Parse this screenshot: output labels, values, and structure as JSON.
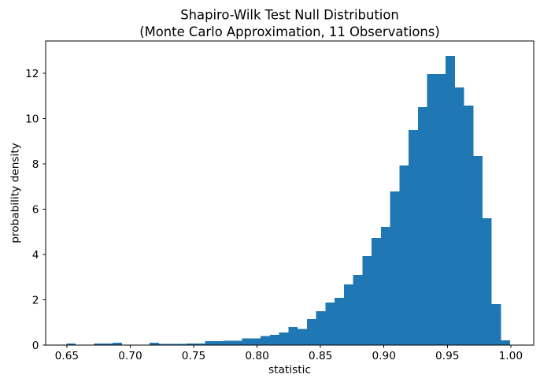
{
  "figure": {
    "background": "#ffffff"
  },
  "chart_data": {
    "type": "histogram",
    "title_line1": "Shapiro-Wilk Test Null Distribution",
    "title_line2": "(Monte Carlo Approximation, 11 Observations)",
    "xlabel": "statistic",
    "ylabel": "probability density",
    "bar_color": "#1f77b4",
    "text_color": "#000000",
    "spine_color": "#000000",
    "grid": false,
    "legend": false,
    "xlim": [
      0.6333,
      1.0181
    ],
    "ylim": [
      0,
      13.43
    ],
    "bins": {
      "start": 0.6497,
      "width": 0.00729,
      "count": 48
    },
    "densities": [
      0.07,
      0,
      0,
      0.07,
      0.07,
      0.1,
      0,
      0,
      0,
      0.1,
      0.05,
      0.05,
      0.05,
      0.07,
      0.07,
      0.17,
      0.17,
      0.2,
      0.2,
      0.3,
      0.3,
      0.4,
      0.45,
      0.55,
      0.8,
      0.72,
      1.15,
      1.5,
      1.88,
      2.09,
      2.68,
      3.1,
      3.93,
      4.73,
      5.22,
      6.78,
      7.93,
      9.5,
      10.5,
      11.97,
      11.97,
      12.77,
      11.37,
      10.57,
      8.35,
      5.6,
      1.81,
      0.21
    ],
    "x_ticks": {
      "values": [
        0.65,
        0.7,
        0.75,
        0.8,
        0.85,
        0.9,
        0.95,
        1.0
      ],
      "labels": [
        "0.65",
        "0.70",
        "0.75",
        "0.80",
        "0.85",
        "0.90",
        "0.95",
        "1.00"
      ]
    },
    "y_ticks": {
      "values": [
        0,
        2,
        4,
        6,
        8,
        10,
        12
      ],
      "labels": [
        "0",
        "2",
        "4",
        "6",
        "8",
        "10",
        "12"
      ]
    }
  }
}
